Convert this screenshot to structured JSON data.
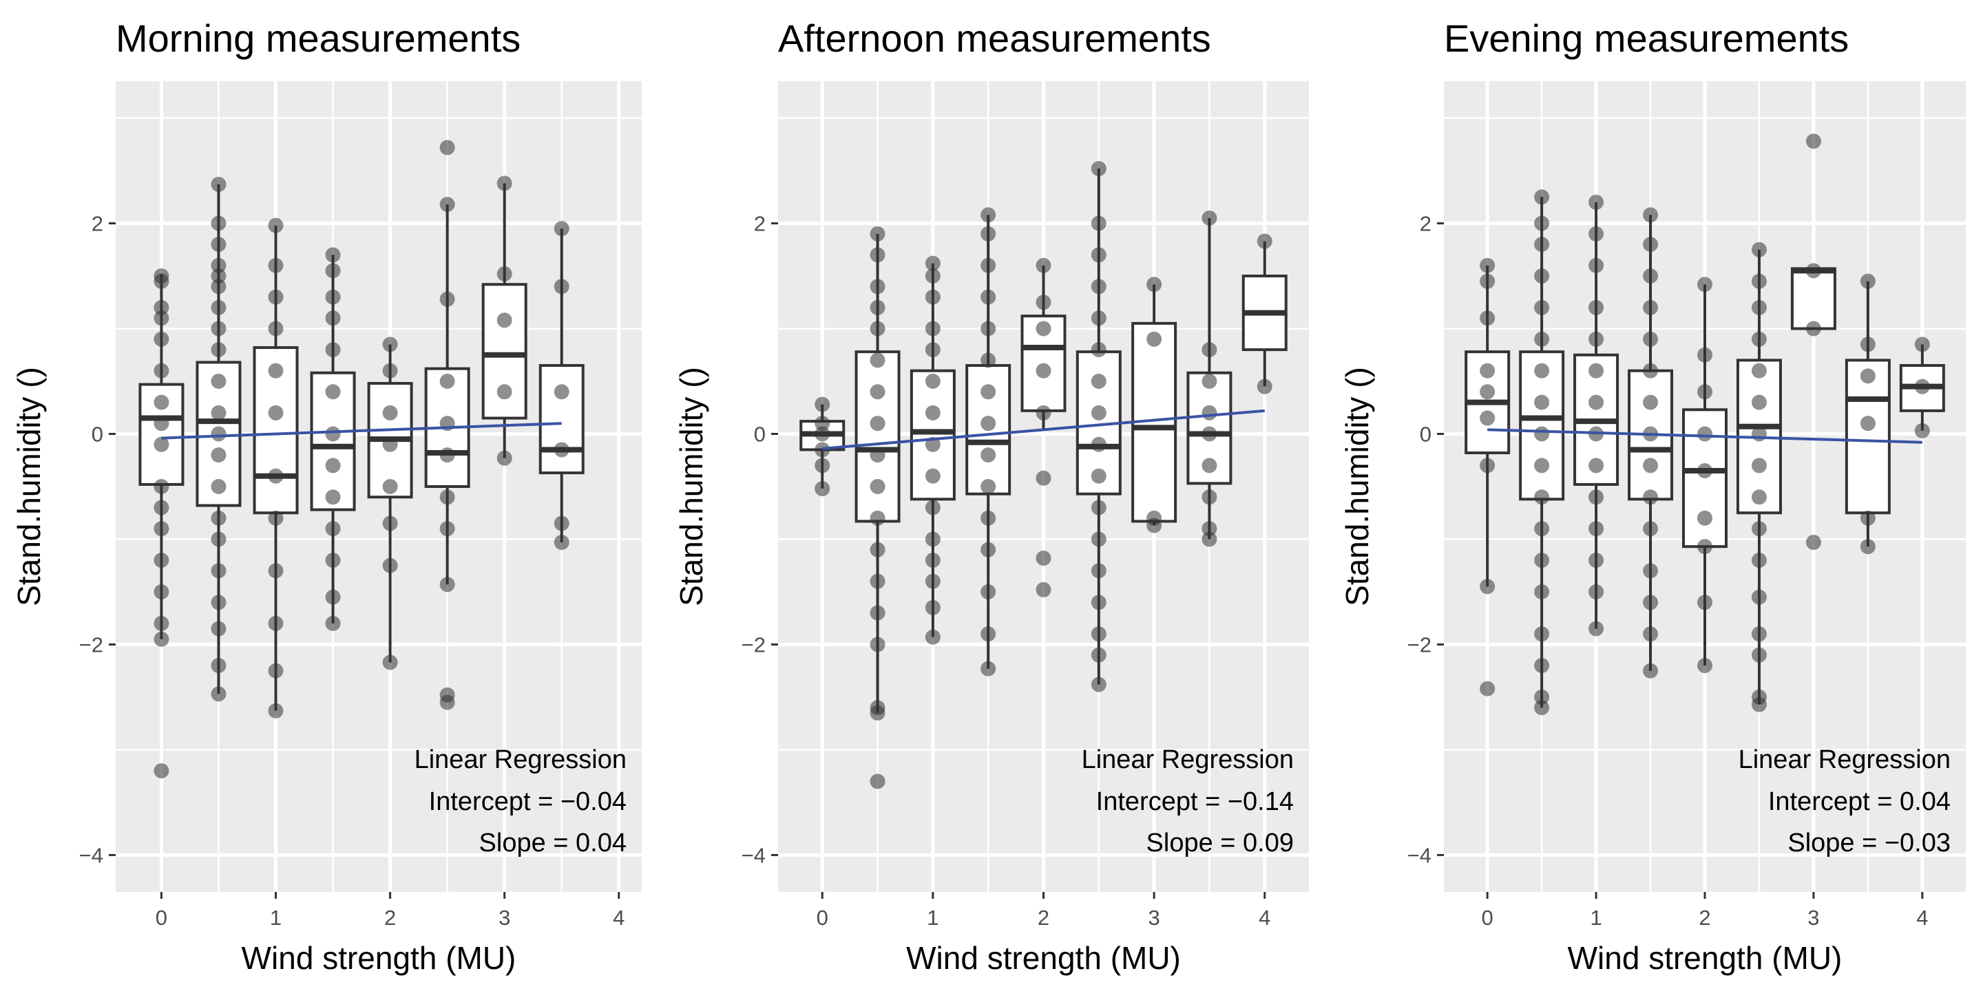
{
  "figure": {
    "background": "#ffffff",
    "panel_background": "#ebebeb",
    "grid_color": "#ffffff",
    "regression_color": "#3a53a4",
    "point_color": "#333333"
  },
  "chart_data": [
    {
      "type": "box",
      "title": "Morning measurements",
      "xlabel": "Wind strength (MU)",
      "ylabel": "Stand.humidity ()",
      "xlim": [
        -0.4,
        4.2
      ],
      "ylim": [
        -4.35,
        3.35
      ],
      "xticks": [
        0,
        1,
        2,
        3,
        4
      ],
      "yticks": [
        -4,
        -2,
        0,
        2
      ],
      "ytick_labels": [
        "−4",
        "−2",
        "0",
        "2"
      ],
      "regression": {
        "label": "Linear Regression",
        "intercept_label": "Intercept = −0.04",
        "slope_label": "Slope = 0.04",
        "intercept": -0.04,
        "slope": 0.04,
        "x_range": [
          0,
          3.5
        ]
      },
      "boxes": [
        {
          "x": 0,
          "q1": -0.48,
          "median": 0.15,
          "q3": 0.47,
          "lo": -1.95,
          "hi": 1.52
        },
        {
          "x": 0.5,
          "q1": -0.68,
          "median": 0.12,
          "q3": 0.68,
          "lo": -2.47,
          "hi": 2.37
        },
        {
          "x": 1,
          "q1": -0.75,
          "median": -0.4,
          "q3": 0.82,
          "lo": -2.63,
          "hi": 1.98
        },
        {
          "x": 1.5,
          "q1": -0.72,
          "median": -0.12,
          "q3": 0.58,
          "lo": -1.8,
          "hi": 1.7
        },
        {
          "x": 2,
          "q1": -0.6,
          "median": -0.05,
          "q3": 0.48,
          "lo": -2.17,
          "hi": 0.85
        },
        {
          "x": 2.5,
          "q1": -0.5,
          "median": -0.18,
          "q3": 0.62,
          "lo": -1.43,
          "hi": 2.18
        },
        {
          "x": 3,
          "q1": 0.15,
          "median": 0.75,
          "q3": 1.42,
          "lo": -0.23,
          "hi": 2.38
        },
        {
          "x": 3.5,
          "q1": -0.37,
          "median": -0.15,
          "q3": 0.65,
          "lo": -1.03,
          "hi": 1.95
        }
      ],
      "points": [
        {
          "x": 0,
          "y": [
            1.5,
            1.45,
            1.2,
            1.1,
            0.9,
            0.6,
            0.3,
            0.1,
            -0.1,
            -0.5,
            -0.7,
            -0.9,
            -1.2,
            -1.5,
            -1.8,
            -1.95,
            -3.2
          ]
        },
        {
          "x": 0.5,
          "y": [
            2.37,
            2.0,
            1.8,
            1.6,
            1.5,
            1.4,
            1.2,
            1.0,
            0.8,
            0.5,
            0.2,
            0.0,
            -0.2,
            -0.5,
            -0.8,
            -1.0,
            -1.3,
            -1.6,
            -1.85,
            -2.2,
            -2.47
          ]
        },
        {
          "x": 1,
          "y": [
            1.98,
            1.6,
            1.3,
            1.0,
            0.6,
            0.2,
            -0.4,
            -0.8,
            -1.3,
            -1.8,
            -2.25,
            -2.63
          ]
        },
        {
          "x": 1.5,
          "y": [
            1.7,
            1.55,
            1.3,
            1.1,
            0.8,
            0.4,
            0.0,
            -0.3,
            -0.6,
            -0.9,
            -1.2,
            -1.55,
            -1.8
          ]
        },
        {
          "x": 2,
          "y": [
            0.85,
            0.6,
            0.2,
            -0.1,
            -0.5,
            -0.85,
            -1.25,
            -2.17
          ]
        },
        {
          "x": 2.5,
          "y": [
            2.72,
            2.18,
            1.28,
            0.5,
            0.1,
            -0.2,
            -0.6,
            -0.9,
            -1.43,
            -2.48,
            -2.55
          ]
        },
        {
          "x": 3,
          "y": [
            2.38,
            1.52,
            1.08,
            0.4,
            -0.23
          ]
        },
        {
          "x": 3.5,
          "y": [
            1.95,
            1.4,
            0.4,
            -0.15,
            -0.85,
            -1.03
          ]
        }
      ]
    },
    {
      "type": "box",
      "title": "Afternoon measurements",
      "xlabel": "Wind strength (MU)",
      "ylabel": "Stand.humidity ()",
      "xlim": [
        -0.4,
        4.4
      ],
      "ylim": [
        -4.35,
        3.35
      ],
      "xticks": [
        0,
        1,
        2,
        3,
        4
      ],
      "yticks": [
        -4,
        -2,
        0,
        2
      ],
      "ytick_labels": [
        "−4",
        "−2",
        "0",
        "2"
      ],
      "regression": {
        "label": "Linear Regression",
        "intercept_label": "Intercept = −0.14",
        "slope_label": "Slope = 0.09",
        "intercept": -0.14,
        "slope": 0.09,
        "x_range": [
          0,
          4
        ]
      },
      "boxes": [
        {
          "x": 0,
          "q1": -0.15,
          "median": 0.0,
          "q3": 0.12,
          "lo": -0.52,
          "hi": 0.28
        },
        {
          "x": 0.5,
          "q1": -0.83,
          "median": -0.15,
          "q3": 0.78,
          "lo": -2.65,
          "hi": 1.9
        },
        {
          "x": 1,
          "q1": -0.62,
          "median": 0.02,
          "q3": 0.6,
          "lo": -1.93,
          "hi": 1.62
        },
        {
          "x": 1.5,
          "q1": -0.57,
          "median": -0.08,
          "q3": 0.65,
          "lo": -2.23,
          "hi": 2.08
        },
        {
          "x": 2,
          "q1": 0.22,
          "median": 0.82,
          "q3": 1.12,
          "lo": 0.05,
          "hi": 1.6
        },
        {
          "x": 2.5,
          "q1": -0.57,
          "median": -0.12,
          "q3": 0.78,
          "lo": -2.38,
          "hi": 2.52
        },
        {
          "x": 3,
          "q1": -0.83,
          "median": 0.06,
          "q3": 1.05,
          "lo": -0.87,
          "hi": 1.42
        },
        {
          "x": 3.5,
          "q1": -0.47,
          "median": 0.0,
          "q3": 0.58,
          "lo": -1.0,
          "hi": 2.05
        },
        {
          "x": 4,
          "q1": 0.8,
          "median": 1.15,
          "q3": 1.5,
          "lo": 0.45,
          "hi": 1.83
        }
      ],
      "points": [
        {
          "x": 0,
          "y": [
            0.28,
            0.1,
            0.0,
            -0.15,
            -0.3,
            -0.52
          ]
        },
        {
          "x": 0.5,
          "y": [
            1.9,
            1.7,
            1.4,
            1.2,
            1.0,
            0.7,
            0.4,
            0.1,
            -0.2,
            -0.5,
            -0.8,
            -1.1,
            -1.4,
            -1.7,
            -2.0,
            -2.6,
            -2.65,
            -3.3
          ]
        },
        {
          "x": 1,
          "y": [
            1.62,
            1.5,
            1.3,
            1.0,
            0.8,
            0.5,
            0.2,
            -0.1,
            -0.4,
            -0.7,
            -1.0,
            -1.2,
            -1.4,
            -1.65,
            -1.93
          ]
        },
        {
          "x": 1.5,
          "y": [
            2.08,
            1.9,
            1.6,
            1.3,
            1.0,
            0.7,
            0.4,
            0.1,
            -0.2,
            -0.5,
            -0.8,
            -1.1,
            -1.5,
            -1.9,
            -2.23
          ]
        },
        {
          "x": 2,
          "y": [
            1.6,
            1.25,
            1.0,
            0.6,
            0.2,
            -0.42,
            -1.18,
            -1.48
          ]
        },
        {
          "x": 2.5,
          "y": [
            2.52,
            2.0,
            1.7,
            1.4,
            1.1,
            0.8,
            0.5,
            0.2,
            -0.1,
            -0.4,
            -0.7,
            -1.0,
            -1.3,
            -1.6,
            -1.9,
            -2.1,
            -2.38
          ]
        },
        {
          "x": 3,
          "y": [
            1.42,
            0.9,
            -0.8,
            -0.87
          ]
        },
        {
          "x": 3.5,
          "y": [
            2.05,
            0.8,
            0.5,
            0.2,
            0.0,
            -0.3,
            -0.6,
            -0.9,
            -1.0
          ]
        },
        {
          "x": 4,
          "y": [
            1.83,
            0.45
          ]
        }
      ]
    },
    {
      "type": "box",
      "title": "Evening measurements",
      "xlabel": "Wind strength (MU)",
      "ylabel": "Stand.humidity ()",
      "xlim": [
        -0.4,
        4.4
      ],
      "ylim": [
        -4.35,
        3.35
      ],
      "xticks": [
        0,
        1,
        2,
        3,
        4
      ],
      "yticks": [
        -4,
        -2,
        0,
        2
      ],
      "ytick_labels": [
        "−4",
        "−2",
        "0",
        "2"
      ],
      "regression": {
        "label": "Linear Regression",
        "intercept_label": "Intercept = 0.04",
        "slope_label": "Slope = −0.03",
        "intercept": 0.04,
        "slope": -0.03,
        "x_range": [
          0,
          4
        ]
      },
      "boxes": [
        {
          "x": 0,
          "q1": -0.18,
          "median": 0.3,
          "q3": 0.78,
          "lo": -1.45,
          "hi": 1.6
        },
        {
          "x": 0.5,
          "q1": -0.62,
          "median": 0.15,
          "q3": 0.78,
          "lo": -2.6,
          "hi": 2.25
        },
        {
          "x": 1,
          "q1": -0.48,
          "median": 0.12,
          "q3": 0.75,
          "lo": -1.85,
          "hi": 2.2
        },
        {
          "x": 1.5,
          "q1": -0.62,
          "median": -0.15,
          "q3": 0.6,
          "lo": -2.25,
          "hi": 2.08
        },
        {
          "x": 2,
          "q1": -1.07,
          "median": -0.35,
          "q3": 0.23,
          "lo": -2.2,
          "hi": 1.42
        },
        {
          "x": 2.5,
          "q1": -0.75,
          "median": 0.07,
          "q3": 0.7,
          "lo": -2.57,
          "hi": 1.75
        },
        {
          "x": 3,
          "q1": 1.0,
          "median": 1.55,
          "q3": 1.57,
          "lo": 1.0,
          "hi": 1.57
        },
        {
          "x": 3.5,
          "q1": -0.75,
          "median": 0.33,
          "q3": 0.7,
          "lo": -1.07,
          "hi": 1.45
        },
        {
          "x": 4,
          "q1": 0.22,
          "median": 0.45,
          "q3": 0.65,
          "lo": 0.03,
          "hi": 0.85
        }
      ],
      "points": [
        {
          "x": 0,
          "y": [
            1.6,
            1.45,
            1.1,
            0.6,
            0.4,
            0.15,
            -0.3,
            -1.45,
            -2.42
          ]
        },
        {
          "x": 0.5,
          "y": [
            2.25,
            2.0,
            1.8,
            1.5,
            1.2,
            0.9,
            0.6,
            0.3,
            0.0,
            -0.3,
            -0.6,
            -0.9,
            -1.2,
            -1.5,
            -1.9,
            -2.2,
            -2.5,
            -2.6
          ]
        },
        {
          "x": 1,
          "y": [
            2.2,
            1.9,
            1.6,
            1.2,
            0.9,
            0.6,
            0.3,
            0.0,
            -0.3,
            -0.6,
            -0.9,
            -1.2,
            -1.5,
            -1.85
          ]
        },
        {
          "x": 1.5,
          "y": [
            2.08,
            1.8,
            1.5,
            1.2,
            0.9,
            0.6,
            0.3,
            0.0,
            -0.3,
            -0.6,
            -0.9,
            -1.3,
            -1.6,
            -1.9,
            -2.25
          ]
        },
        {
          "x": 2,
          "y": [
            1.42,
            0.75,
            0.4,
            0.0,
            -0.35,
            -0.8,
            -1.07,
            -1.6,
            -2.2
          ]
        },
        {
          "x": 2.5,
          "y": [
            1.75,
            1.45,
            1.2,
            0.9,
            0.6,
            0.3,
            0.0,
            -0.3,
            -0.6,
            -0.9,
            -1.2,
            -1.55,
            -1.9,
            -2.1,
            -2.5,
            -2.57
          ]
        },
        {
          "x": 3,
          "y": [
            2.78,
            1.55,
            1.0,
            -1.03
          ]
        },
        {
          "x": 3.5,
          "y": [
            1.45,
            0.85,
            0.55,
            0.1,
            -0.8,
            -1.07
          ]
        },
        {
          "x": 4,
          "y": [
            0.85,
            0.45,
            0.03
          ]
        }
      ]
    }
  ]
}
